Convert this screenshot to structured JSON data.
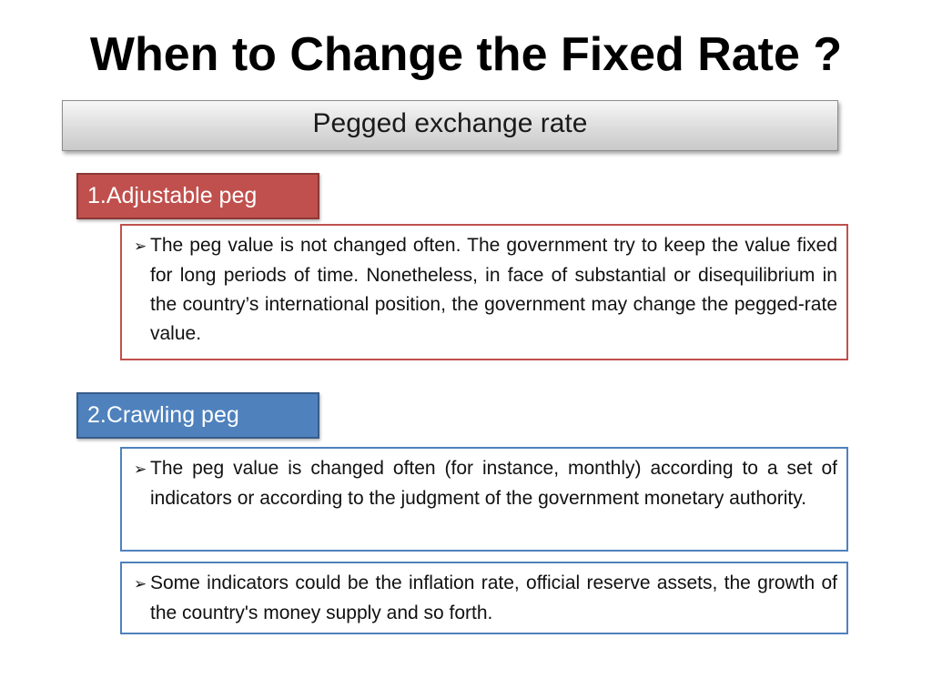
{
  "slide": {
    "title": "When to Change the Fixed Rate ?",
    "header": "Pegged exchange rate"
  },
  "sections": [
    {
      "label": "1.Adjustable  peg",
      "color": "#c0504d",
      "bullets": [
        "The peg value is not changed often. The government try to keep the value fixed for long periods of time. Nonetheless, in face of substantial or  disequilibrium in the country’s international position, the government may change  the pegged-rate value."
      ]
    },
    {
      "label": "2.Crawling peg",
      "color": "#4f81bd",
      "bullets": [
        "The peg value is changed often (for instance, monthly) according to a set of indicators or according to the judgment of the government monetary authority.",
        "Some indicators could be the inflation rate, official reserve assets, the growth of the country's money supply and so forth."
      ]
    }
  ],
  "icons": {
    "bullet": "arrow-bullet-icon"
  }
}
